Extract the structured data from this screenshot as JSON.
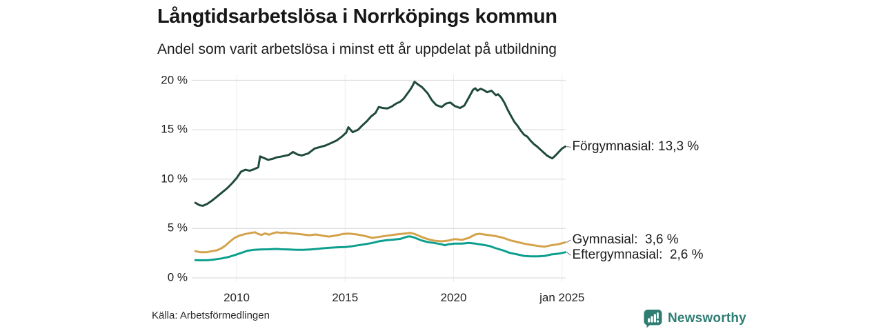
{
  "header": {
    "title": "Långtidsarbetslösa i Norrköpings kommun",
    "subtitle": "Andel som varit arbetslösa i minst ett år uppdelat på utbildning"
  },
  "footer": {
    "source": "Källa: Arbetsförmedlingen",
    "brand": "Newsworthy"
  },
  "colors": {
    "grid_horizontal": "#dedede",
    "grid_vertical": "#ededed",
    "axis_text": "#222222",
    "label_text": "#1a1a1a",
    "connector": "#888888",
    "brand_teal": "#2e7d72",
    "series_forgymnasial": "#1f4a3c",
    "series_gymnasial": "#d4a24a",
    "series_eftergymnasial": "#0c9f8e"
  },
  "chart_data": {
    "type": "line",
    "title": "Långtidsarbetslösa i Norrköpings kommun",
    "subtitle": "Andel som varit arbetslösa i minst ett år uppdelat på utbildning",
    "unit": "%",
    "grid": true,
    "legend_position": "right-end-labels",
    "x_range": [
      2008.1,
      2025.16
    ],
    "ylim": [
      0,
      20
    ],
    "y_axis": {
      "ticks": [
        {
          "value": 0,
          "label": "0 %"
        },
        {
          "value": 5,
          "label": "5 %"
        },
        {
          "value": 10,
          "label": "10 %"
        },
        {
          "value": 15,
          "label": "15 %"
        },
        {
          "value": 20,
          "label": "20 %"
        }
      ]
    },
    "x_axis": {
      "ticks": [
        {
          "year": 2010,
          "label": "2010"
        },
        {
          "year": 2015,
          "label": "2015"
        },
        {
          "year": 2020,
          "label": "2020"
        },
        {
          "year": 2025,
          "label": "jan 2025"
        }
      ]
    },
    "series": [
      {
        "id": "forgymnasial",
        "name": "Förgymnasial",
        "end_label": "Förgymnasial: 13,3 %",
        "end_value": 13.3,
        "color": "#1f4a3c",
        "label_dy": 1,
        "points": [
          [
            2008.1,
            7.6
          ],
          [
            2008.3,
            7.35
          ],
          [
            2008.45,
            7.3
          ],
          [
            2008.65,
            7.5
          ],
          [
            2008.85,
            7.8
          ],
          [
            2009.05,
            8.15
          ],
          [
            2009.3,
            8.6
          ],
          [
            2009.55,
            9.05
          ],
          [
            2009.8,
            9.6
          ],
          [
            2010.0,
            10.1
          ],
          [
            2010.2,
            10.75
          ],
          [
            2010.4,
            10.95
          ],
          [
            2010.6,
            10.85
          ],
          [
            2010.8,
            11.0
          ],
          [
            2011.0,
            11.2
          ],
          [
            2011.08,
            12.3
          ],
          [
            2011.25,
            12.15
          ],
          [
            2011.45,
            11.95
          ],
          [
            2011.65,
            12.05
          ],
          [
            2011.85,
            12.2
          ],
          [
            2012.1,
            12.3
          ],
          [
            2012.4,
            12.45
          ],
          [
            2012.6,
            12.75
          ],
          [
            2012.8,
            12.5
          ],
          [
            2013.0,
            12.4
          ],
          [
            2013.3,
            12.6
          ],
          [
            2013.6,
            13.1
          ],
          [
            2013.85,
            13.25
          ],
          [
            2014.1,
            13.4
          ],
          [
            2014.35,
            13.65
          ],
          [
            2014.6,
            13.9
          ],
          [
            2014.85,
            14.3
          ],
          [
            2015.05,
            14.7
          ],
          [
            2015.15,
            15.25
          ],
          [
            2015.35,
            14.75
          ],
          [
            2015.6,
            15.0
          ],
          [
            2015.8,
            15.45
          ],
          [
            2016.0,
            15.85
          ],
          [
            2016.2,
            16.35
          ],
          [
            2016.4,
            16.7
          ],
          [
            2016.55,
            17.3
          ],
          [
            2016.75,
            17.2
          ],
          [
            2016.95,
            17.15
          ],
          [
            2017.15,
            17.35
          ],
          [
            2017.35,
            17.65
          ],
          [
            2017.55,
            17.85
          ],
          [
            2017.7,
            18.15
          ],
          [
            2017.85,
            18.6
          ],
          [
            2018.0,
            19.05
          ],
          [
            2018.1,
            19.4
          ],
          [
            2018.2,
            19.85
          ],
          [
            2018.35,
            19.6
          ],
          [
            2018.55,
            19.3
          ],
          [
            2018.8,
            18.7
          ],
          [
            2019.0,
            18.0
          ],
          [
            2019.2,
            17.5
          ],
          [
            2019.45,
            17.3
          ],
          [
            2019.65,
            17.65
          ],
          [
            2019.85,
            17.75
          ],
          [
            2020.05,
            17.4
          ],
          [
            2020.3,
            17.2
          ],
          [
            2020.5,
            17.45
          ],
          [
            2020.7,
            18.25
          ],
          [
            2020.9,
            19.05
          ],
          [
            2021.0,
            19.2
          ],
          [
            2021.1,
            18.95
          ],
          [
            2021.25,
            19.15
          ],
          [
            2021.4,
            19.0
          ],
          [
            2021.55,
            18.8
          ],
          [
            2021.75,
            18.95
          ],
          [
            2021.95,
            18.5
          ],
          [
            2022.05,
            18.6
          ],
          [
            2022.2,
            18.25
          ],
          [
            2022.35,
            17.7
          ],
          [
            2022.5,
            17.0
          ],
          [
            2022.65,
            16.4
          ],
          [
            2022.8,
            15.8
          ],
          [
            2022.95,
            15.4
          ],
          [
            2023.1,
            14.9
          ],
          [
            2023.25,
            14.5
          ],
          [
            2023.4,
            14.3
          ],
          [
            2023.55,
            13.9
          ],
          [
            2023.7,
            13.55
          ],
          [
            2023.85,
            13.3
          ],
          [
            2024.0,
            13.0
          ],
          [
            2024.15,
            12.7
          ],
          [
            2024.3,
            12.4
          ],
          [
            2024.45,
            12.2
          ],
          [
            2024.55,
            12.1
          ],
          [
            2024.7,
            12.4
          ],
          [
            2024.85,
            12.75
          ],
          [
            2025.0,
            13.1
          ],
          [
            2025.15,
            13.3
          ]
        ]
      },
      {
        "id": "gymnasial",
        "name": "Gymnasial",
        "end_label": "Gymnasial:  3,6 %",
        "end_value": 3.6,
        "color": "#d4a24a",
        "label_dy": -3.5,
        "points": [
          [
            2008.1,
            2.7
          ],
          [
            2008.35,
            2.6
          ],
          [
            2008.6,
            2.6
          ],
          [
            2008.85,
            2.7
          ],
          [
            2009.1,
            2.8
          ],
          [
            2009.3,
            3.0
          ],
          [
            2009.5,
            3.3
          ],
          [
            2009.7,
            3.7
          ],
          [
            2009.9,
            4.05
          ],
          [
            2010.15,
            4.3
          ],
          [
            2010.4,
            4.45
          ],
          [
            2010.65,
            4.55
          ],
          [
            2010.85,
            4.62
          ],
          [
            2011.0,
            4.45
          ],
          [
            2011.15,
            4.35
          ],
          [
            2011.3,
            4.5
          ],
          [
            2011.5,
            4.38
          ],
          [
            2011.65,
            4.5
          ],
          [
            2011.85,
            4.62
          ],
          [
            2012.05,
            4.56
          ],
          [
            2012.25,
            4.6
          ],
          [
            2012.45,
            4.52
          ],
          [
            2012.75,
            4.47
          ],
          [
            2013.05,
            4.4
          ],
          [
            2013.35,
            4.32
          ],
          [
            2013.65,
            4.4
          ],
          [
            2013.95,
            4.28
          ],
          [
            2014.25,
            4.18
          ],
          [
            2014.6,
            4.3
          ],
          [
            2014.9,
            4.45
          ],
          [
            2015.2,
            4.48
          ],
          [
            2015.55,
            4.4
          ],
          [
            2015.9,
            4.25
          ],
          [
            2016.25,
            4.05
          ],
          [
            2016.6,
            4.17
          ],
          [
            2016.95,
            4.28
          ],
          [
            2017.35,
            4.4
          ],
          [
            2017.8,
            4.5
          ],
          [
            2018.0,
            4.56
          ],
          [
            2018.2,
            4.45
          ],
          [
            2018.5,
            4.17
          ],
          [
            2018.8,
            3.93
          ],
          [
            2019.1,
            3.77
          ],
          [
            2019.45,
            3.7
          ],
          [
            2019.75,
            3.78
          ],
          [
            2020.05,
            3.93
          ],
          [
            2020.4,
            3.86
          ],
          [
            2020.7,
            4.05
          ],
          [
            2021.0,
            4.4
          ],
          [
            2021.2,
            4.47
          ],
          [
            2021.4,
            4.4
          ],
          [
            2021.65,
            4.33
          ],
          [
            2021.95,
            4.23
          ],
          [
            2022.3,
            4.05
          ],
          [
            2022.6,
            3.81
          ],
          [
            2022.95,
            3.63
          ],
          [
            2023.25,
            3.47
          ],
          [
            2023.55,
            3.35
          ],
          [
            2023.9,
            3.23
          ],
          [
            2024.2,
            3.16
          ],
          [
            2024.5,
            3.3
          ],
          [
            2024.85,
            3.42
          ],
          [
            2025.15,
            3.6
          ]
        ]
      },
      {
        "id": "eftergymnasial",
        "name": "Eftergymnasial",
        "end_label": "Eftergymnasial:  2,6 %",
        "end_value": 2.6,
        "color": "#0c9f8e",
        "label_dy": 4.5,
        "points": [
          [
            2008.1,
            1.8
          ],
          [
            2008.4,
            1.78
          ],
          [
            2008.7,
            1.8
          ],
          [
            2009.0,
            1.87
          ],
          [
            2009.3,
            1.97
          ],
          [
            2009.6,
            2.1
          ],
          [
            2009.9,
            2.3
          ],
          [
            2010.1,
            2.45
          ],
          [
            2010.3,
            2.6
          ],
          [
            2010.5,
            2.75
          ],
          [
            2010.8,
            2.85
          ],
          [
            2011.1,
            2.88
          ],
          [
            2011.5,
            2.9
          ],
          [
            2011.8,
            2.93
          ],
          [
            2012.1,
            2.9
          ],
          [
            2012.4,
            2.88
          ],
          [
            2012.75,
            2.85
          ],
          [
            2013.05,
            2.84
          ],
          [
            2013.4,
            2.88
          ],
          [
            2013.7,
            2.93
          ],
          [
            2014.0,
            3.0
          ],
          [
            2014.3,
            3.05
          ],
          [
            2014.65,
            3.1
          ],
          [
            2015.0,
            3.12
          ],
          [
            2015.3,
            3.2
          ],
          [
            2015.6,
            3.3
          ],
          [
            2015.95,
            3.42
          ],
          [
            2016.25,
            3.54
          ],
          [
            2016.55,
            3.7
          ],
          [
            2016.9,
            3.81
          ],
          [
            2017.2,
            3.87
          ],
          [
            2017.55,
            3.95
          ],
          [
            2017.85,
            4.17
          ],
          [
            2018.0,
            4.2
          ],
          [
            2018.2,
            4.08
          ],
          [
            2018.5,
            3.81
          ],
          [
            2018.8,
            3.63
          ],
          [
            2019.1,
            3.54
          ],
          [
            2019.45,
            3.4
          ],
          [
            2019.6,
            3.3
          ],
          [
            2019.75,
            3.4
          ],
          [
            2020.05,
            3.47
          ],
          [
            2020.4,
            3.47
          ],
          [
            2020.7,
            3.54
          ],
          [
            2021.0,
            3.47
          ],
          [
            2021.35,
            3.35
          ],
          [
            2021.65,
            3.23
          ],
          [
            2021.95,
            3.0
          ],
          [
            2022.3,
            2.77
          ],
          [
            2022.6,
            2.53
          ],
          [
            2022.95,
            2.37
          ],
          [
            2023.25,
            2.23
          ],
          [
            2023.55,
            2.18
          ],
          [
            2023.9,
            2.18
          ],
          [
            2024.2,
            2.23
          ],
          [
            2024.5,
            2.37
          ],
          [
            2024.85,
            2.46
          ],
          [
            2025.15,
            2.6
          ]
        ]
      }
    ]
  }
}
